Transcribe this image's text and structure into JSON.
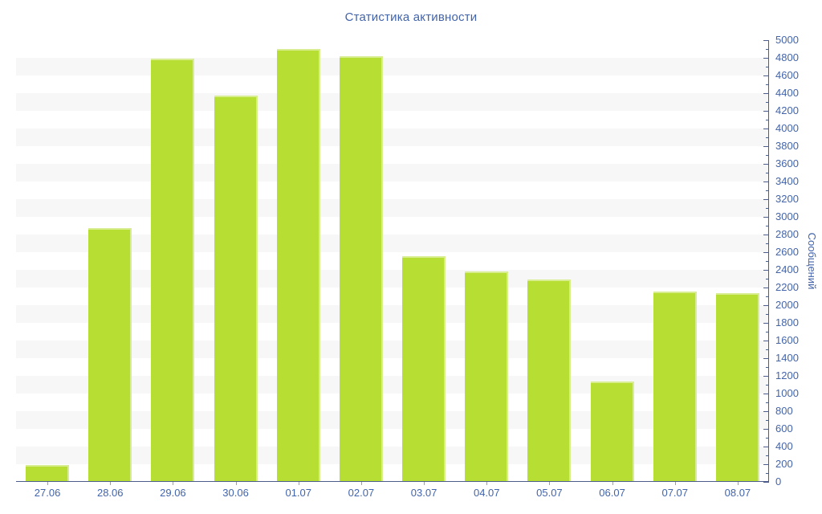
{
  "chart_data": {
    "type": "bar",
    "title": "Статистика активности",
    "ylabel": "Сообщений",
    "xlabel": "",
    "categories": [
      "27.06",
      "28.06",
      "29.06",
      "30.06",
      "01.07",
      "02.07",
      "03.07",
      "04.07",
      "05.07",
      "06.07",
      "07.07",
      "08.07"
    ],
    "values": [
      180,
      2860,
      4780,
      4360,
      4890,
      4810,
      2550,
      2370,
      2280,
      1130,
      2150,
      2130
    ],
    "ylim": [
      0,
      5000
    ],
    "y_major_tick_step": 200,
    "y_minor_tick_step": 100,
    "y_tick_labels": [
      "0",
      "200",
      "400",
      "600",
      "800",
      "1000",
      "1200",
      "1400",
      "1600",
      "1800",
      "2000",
      "2200",
      "2400",
      "2600",
      "2800",
      "3000",
      "3200",
      "3400",
      "3600",
      "3800",
      "4000",
      "4200",
      "4400",
      "4600",
      "4800",
      "5000"
    ],
    "grid": "alternating horizontal bands",
    "legend": "none",
    "axis_side": "right",
    "style": {
      "bar_color": "#b7de33",
      "bar_edge_highlight": "rgba(255,255,255,0.45)",
      "text_color": "#4264ab",
      "axis_color": "#4c5d8c",
      "x_tick_color": "#9a9da3",
      "stripe_color": "#f7f7f8",
      "background": "#ffffff"
    }
  }
}
